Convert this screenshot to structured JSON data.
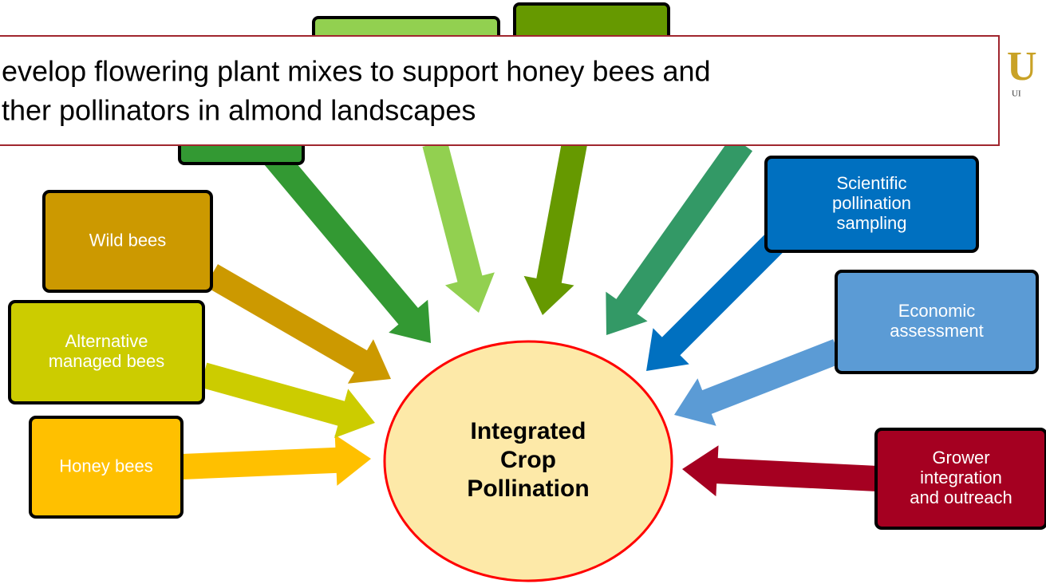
{
  "callout": {
    "lines": [
      "evelop flowering plant mixes to support honey bees and",
      "ther pollinators in almond landscapes"
    ]
  },
  "logo": {
    "mark": "U",
    "sub": "UI"
  },
  "center": {
    "lines": [
      "Integrated",
      "Crop",
      "Pollination"
    ]
  },
  "nodes": [
    {
      "lines": [
        "Wild bees"
      ]
    },
    {
      "lines": [
        "Alternative",
        "managed bees"
      ]
    },
    {
      "lines": [
        "Honey bees"
      ]
    },
    {
      "lines": [
        "Scientific",
        "pollination",
        "sampling"
      ]
    },
    {
      "lines": [
        "Economic",
        "assessment"
      ]
    },
    {
      "lines": [
        "Grower",
        "integration",
        "and outreach"
      ]
    }
  ]
}
